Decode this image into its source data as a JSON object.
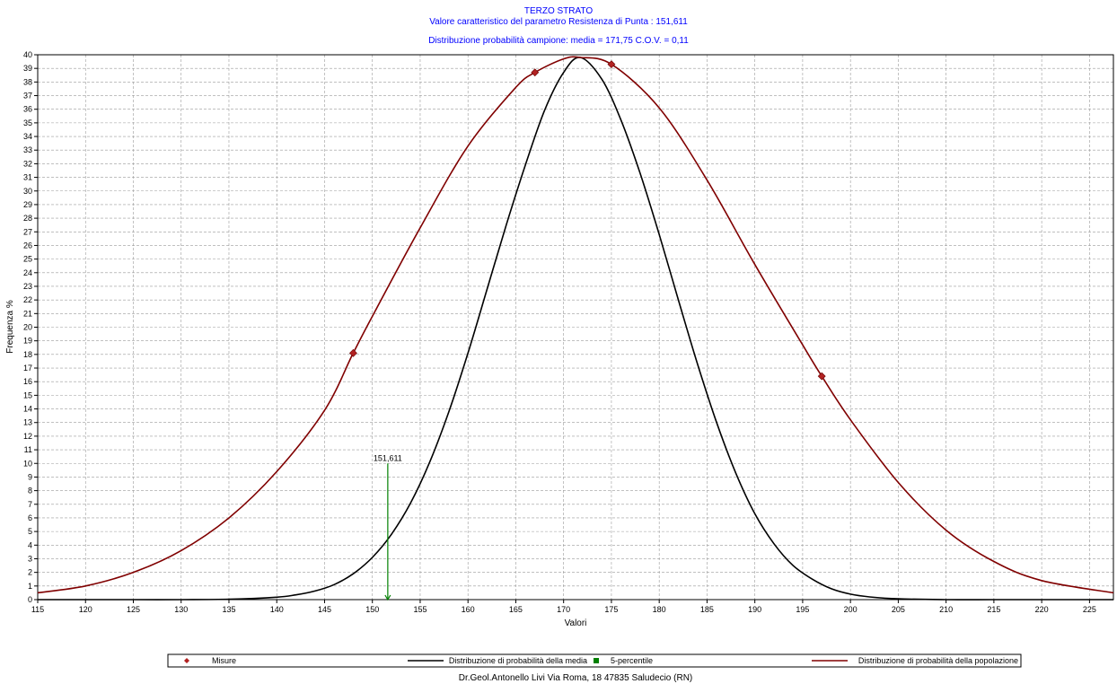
{
  "header": {
    "title": "TERZO STRATO",
    "subtitle": "Valore caratteristico del parametro Resistenza di Punta : 151,611",
    "subtitle2": "Distribuzione probabilità campione: media = 171,75 C.O.V. = 0,11"
  },
  "footer": {
    "credit": "Dr.Geol.Antonello Livi Via Roma, 18 47835 Saludecio (RN)"
  },
  "colors": {
    "title_text": "#0000ff",
    "media_curve": "#000000",
    "population_curve": "#800000",
    "misure_marker": "#b22222",
    "percentile": "#008000",
    "grid": "#9a9a9a"
  },
  "chart_data": {
    "type": "line",
    "xlabel": "Valori",
    "ylabel": "Frequenza %",
    "xlim": [
      115,
      227.5
    ],
    "ylim": [
      0,
      40
    ],
    "xticks": [
      115,
      120,
      125,
      130,
      135,
      140,
      145,
      150,
      155,
      160,
      165,
      170,
      175,
      180,
      185,
      190,
      195,
      200,
      205,
      210,
      215,
      220,
      225
    ],
    "yticks": [
      0,
      1,
      2,
      3,
      4,
      5,
      6,
      7,
      8,
      9,
      10,
      11,
      12,
      13,
      14,
      15,
      16,
      17,
      18,
      19,
      20,
      21,
      22,
      23,
      24,
      25,
      26,
      27,
      28,
      29,
      30,
      31,
      32,
      33,
      34,
      35,
      36,
      37,
      38,
      39,
      40
    ],
    "grid": true,
    "legend_position": "bottom",
    "series": [
      {
        "name": "Misure",
        "kind": "scatter",
        "marker": "diamond",
        "color_key": "misure_marker",
        "x": [
          148.0,
          167.0,
          175.0,
          197.0
        ],
        "y": [
          18.1,
          38.7,
          39.3,
          16.4
        ]
      },
      {
        "name": "Distribuzione di probabilità della media",
        "kind": "line",
        "color_key": "media_curve",
        "x": [
          115,
          120,
          125,
          130,
          135,
          140,
          142,
          144,
          146,
          148,
          150,
          152,
          154,
          156,
          158,
          160,
          162,
          164,
          166,
          168,
          170,
          171.75,
          174,
          176,
          178,
          180,
          182,
          184,
          186,
          188,
          190,
          192,
          194,
          196,
          198,
          200,
          202,
          205,
          210,
          215,
          220,
          227.5
        ],
        "y": [
          0.0,
          0.0,
          0.0,
          0.0,
          0.03,
          0.18,
          0.35,
          0.63,
          1.1,
          1.9,
          3.1,
          4.8,
          7.1,
          10.1,
          13.8,
          18.1,
          22.8,
          27.5,
          31.9,
          35.9,
          38.7,
          39.8,
          38.2,
          35.2,
          31.3,
          26.8,
          22.0,
          17.3,
          13.0,
          9.3,
          6.3,
          4.1,
          2.5,
          1.5,
          0.8,
          0.4,
          0.2,
          0.06,
          0.0,
          0.0,
          0.0,
          0.0
        ]
      },
      {
        "name": "5-percentile",
        "kind": "marker-line",
        "color_key": "percentile",
        "x": [
          151.611,
          151.611
        ],
        "y": [
          0,
          10
        ],
        "label": "151,611"
      },
      {
        "name": "Distribuzione di probabilità della popolazione",
        "kind": "line",
        "color_key": "population_curve",
        "x": [
          115,
          120,
          125,
          130,
          135,
          140,
          145,
          148,
          150,
          155,
          160,
          165,
          167,
          170,
          171.75,
          175,
          180,
          185,
          190,
          195,
          197,
          200,
          205,
          210,
          215,
          220,
          227.5
        ],
        "y": [
          0.5,
          1.0,
          2.0,
          3.6,
          6.0,
          9.4,
          13.9,
          18.1,
          20.8,
          27.3,
          33.3,
          37.6,
          38.7,
          39.7,
          39.8,
          39.3,
          36.1,
          30.8,
          24.6,
          18.7,
          16.4,
          13.2,
          8.6,
          5.1,
          2.8,
          1.4,
          0.5
        ]
      }
    ]
  }
}
